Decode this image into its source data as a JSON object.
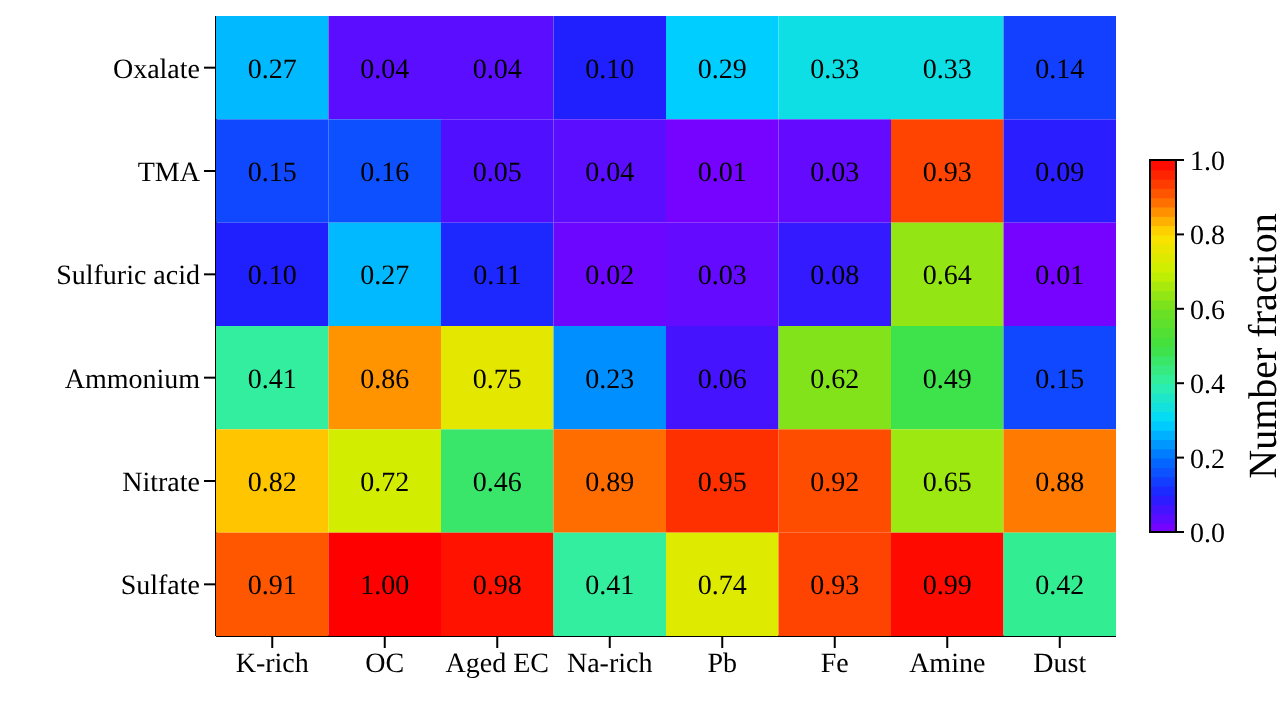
{
  "chart_data": {
    "type": "heatmap",
    "clabel": "Number fraction",
    "categories": [
      "K-rich",
      "OC",
      "Aged EC",
      "Na-rich",
      "Pb",
      "Fe",
      "Amine",
      "Dust"
    ],
    "y_categories": [
      "Oxalate",
      "TMA",
      "Sulfuric acid",
      "Ammonium",
      "Nitrate",
      "Sulfate"
    ],
    "cells": [
      [
        0.27,
        0.04,
        0.04,
        0.1,
        0.29,
        0.33,
        0.33,
        0.14
      ],
      [
        0.15,
        0.16,
        0.05,
        0.04,
        0.01,
        0.03,
        0.93,
        0.09
      ],
      [
        0.1,
        0.27,
        0.11,
        0.02,
        0.03,
        0.08,
        0.64,
        0.01
      ],
      [
        0.41,
        0.86,
        0.75,
        0.23,
        0.06,
        0.62,
        0.49,
        0.15
      ],
      [
        0.82,
        0.72,
        0.46,
        0.89,
        0.95,
        0.92,
        0.65,
        0.88
      ],
      [
        0.91,
        1.0,
        0.98,
        0.41,
        0.74,
        0.93,
        0.99,
        0.42
      ]
    ],
    "cell_labels": [
      [
        "0.27",
        "0.04",
        "0.04",
        "0.10",
        "0.29",
        "0.33",
        "0.33",
        "0.14"
      ],
      [
        "0.15",
        "0.16",
        "0.05",
        "0.04",
        "0.01",
        "0.03",
        "0.93",
        "0.09"
      ],
      [
        "0.10",
        "0.27",
        "0.11",
        "0.02",
        "0.03",
        "0.08",
        "0.64",
        "0.01"
      ],
      [
        "0.41",
        "0.86",
        "0.75",
        "0.23",
        "0.06",
        "0.62",
        "0.49",
        "0.15"
      ],
      [
        "0.82",
        "0.72",
        "0.46",
        "0.89",
        "0.95",
        "0.92",
        "0.65",
        "0.88"
      ],
      [
        "0.91",
        "1.00",
        "0.98",
        "0.41",
        "0.74",
        "0.93",
        "0.99",
        "0.42"
      ]
    ],
    "clim": [
      0,
      1
    ],
    "cticks": [
      {
        "value": 0,
        "label": "0.0"
      },
      {
        "value": 0.2,
        "label": "0.2"
      },
      {
        "value": 0.4,
        "label": "0.4"
      },
      {
        "value": 0.6,
        "label": "0.6"
      },
      {
        "value": 0.8,
        "label": "0.8"
      },
      {
        "value": 1,
        "label": "1.0"
      }
    ]
  }
}
